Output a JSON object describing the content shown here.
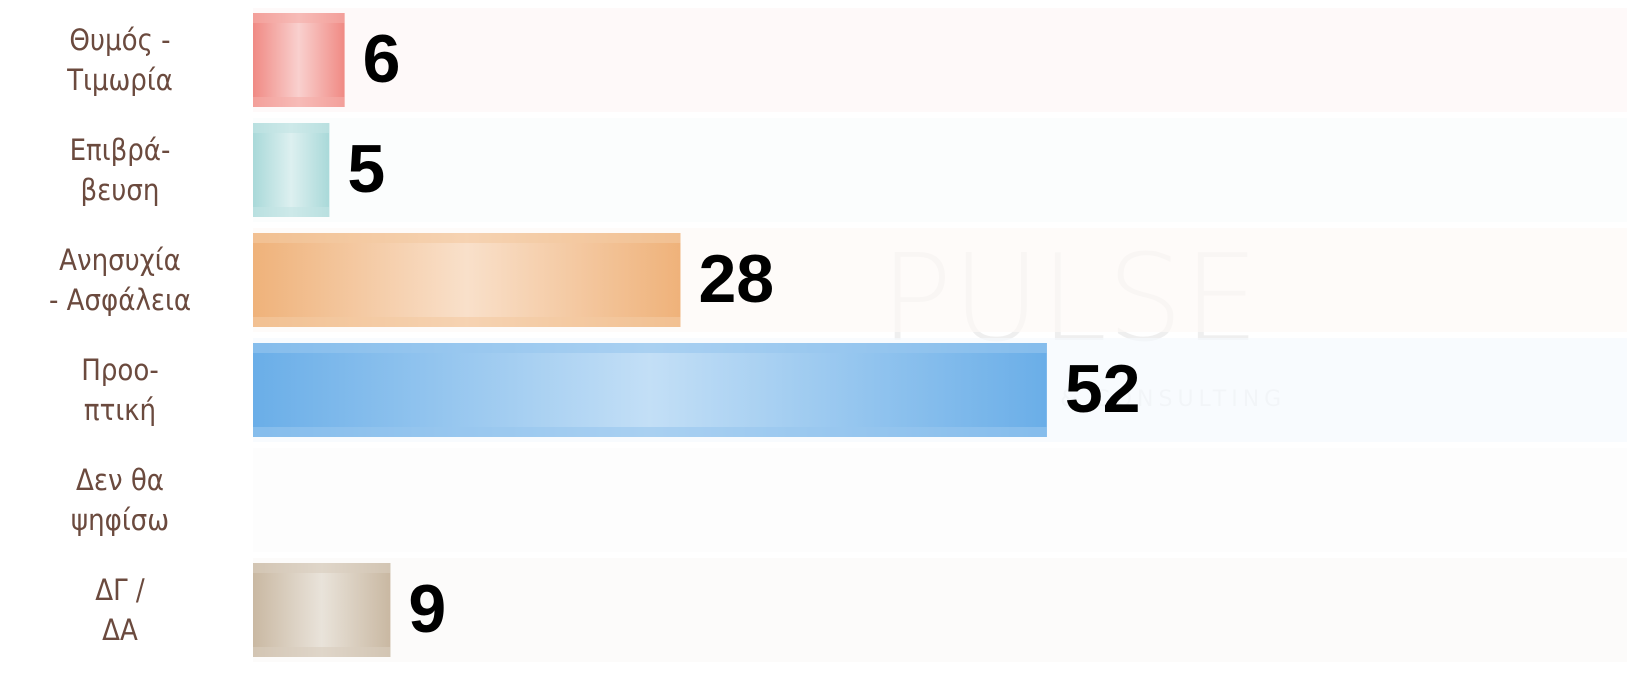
{
  "chart_data": {
    "type": "barh",
    "categories": [
      "Θυμός -\nΤιμωρία",
      "Επιβρά-\nβευση",
      "Ανησυχία\n- Ασφάλεια",
      "Προο-\nπτική",
      "Δεν θα\nψηφίσω",
      "ΔΓ /\nΔΑ"
    ],
    "values": [
      6,
      5,
      28,
      52,
      null,
      9
    ],
    "colors": [
      "#f08a84",
      "#a9d9d9",
      "#efb27a",
      "#6aaee8",
      "#d8d8d8",
      "#c9b8a2"
    ],
    "xlim": [
      0,
      90
    ],
    "watermark": {
      "title": "PULSE",
      "subtitle": "RESEARCH & CONSULTING"
    }
  }
}
